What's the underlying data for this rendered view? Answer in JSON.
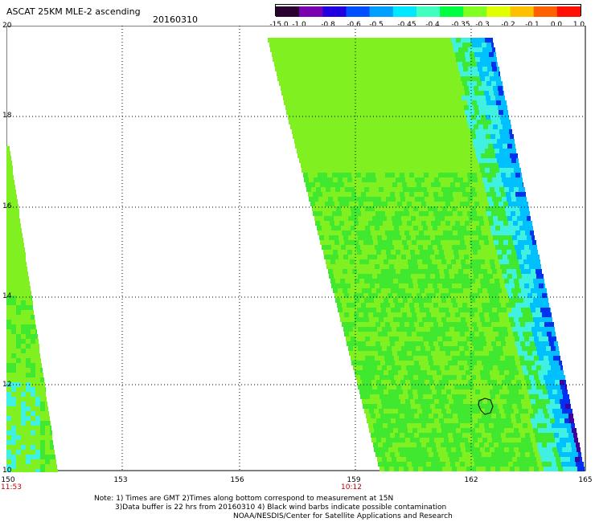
{
  "header": {
    "title": "ASCAT 25KM MLE-2 ascending",
    "date": "20160310"
  },
  "colorbar": {
    "labels": [
      "-15.0",
      "-1.0",
      "-0.8",
      "-0.6",
      "-0.5",
      "-0.45",
      "-0.4",
      "-0.35",
      "-0.3",
      "-0.2",
      "-0.1",
      "0.0",
      "1.0"
    ],
    "colors": [
      "#2a0030",
      "#7a00b0",
      "#2000e0",
      "#0050ff",
      "#00a0ff",
      "#00e8ff",
      "#40ffc0",
      "#00ff40",
      "#80ff20",
      "#e0ff00",
      "#ffc000",
      "#ff6000",
      "#ff1000"
    ]
  },
  "map": {
    "lat_labels": [
      "20",
      "18",
      "16",
      "14",
      "12",
      "10"
    ],
    "lon_labels": [
      "150",
      "153",
      "156",
      "159",
      "162",
      "165"
    ],
    "time_labels": [
      "11:53",
      "10:12"
    ],
    "colors": {
      "swath_main": "#80f020",
      "swath_green": "#40e830",
      "cyan": "#40f0e0",
      "light_blue": "#00c0ff",
      "blue": "#0030f0",
      "purple": "#4000a0",
      "grid": "#000000"
    }
  },
  "notes": {
    "line1": "Note: 1) Times are GMT 2)Times along bottom correspond to measurement at 15N",
    "line2": "3)Data buffer is 22 hrs from 20160310 4) Black wind barbs indicate possible contamination",
    "line3": "NOAA/NESDIS/Center for Satellite Applications and Research"
  }
}
